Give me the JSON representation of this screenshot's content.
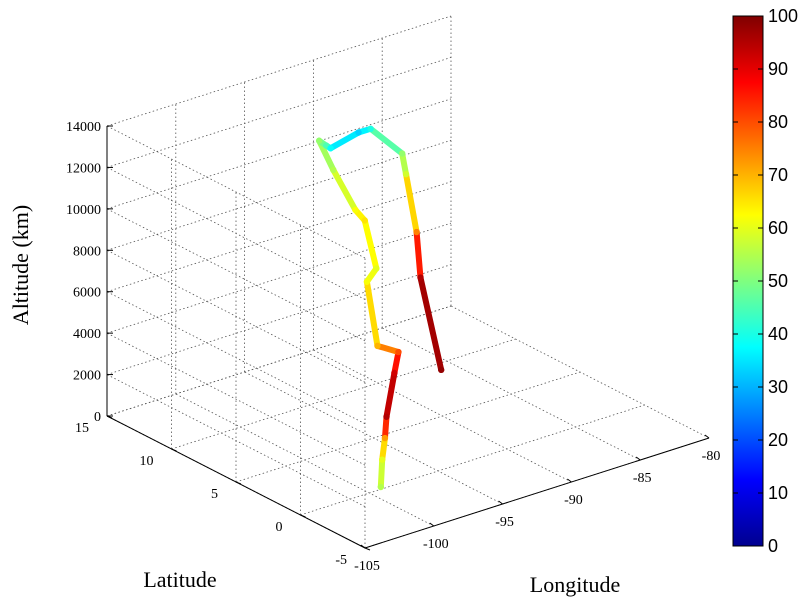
{
  "chart_data": {
    "type": "line",
    "variant": "3d-trajectory",
    "title": "",
    "xlabel": "Longitude",
    "ylabel": "Latitude",
    "zlabel": "Altitude (km)",
    "xlim": [
      -105,
      -80
    ],
    "ylim": [
      -5,
      15
    ],
    "zlim": [
      0,
      14000
    ],
    "x_ticks": [
      "-105",
      "-100",
      "-95",
      "-90",
      "-85",
      "-80"
    ],
    "y_ticks": [
      "-5",
      "0",
      "5",
      "10",
      "15"
    ],
    "z_ticks": [
      "0",
      "2000",
      "4000",
      "6000",
      "8000",
      "10000",
      "12000",
      "14000"
    ],
    "grid": true,
    "colorbar": {
      "colormap": "jet",
      "range": [
        0,
        100
      ],
      "ticks": [
        "0",
        "10",
        "20",
        "30",
        "40",
        "50",
        "60",
        "70",
        "80",
        "90",
        "100"
      ],
      "placement": "right"
    },
    "series": [
      {
        "x": [
          -98.6,
          -98.5,
          -98.3,
          -98.0,
          -97.8,
          -97.6,
          -98.0,
          -98.3,
          -97.8,
          -96.3,
          -96.7,
          -96.9,
          -96.8,
          -96.0,
          -95.5,
          -94.5,
          -94.0,
          -93.3,
          -93.3,
          -93.0,
          -93.0,
          -92.9
        ],
        "y": [
          0.6,
          0.6,
          0.6,
          0.8,
          0.4,
          0.3,
          1.5,
          2.0,
          1.8,
          4.3,
          4.6,
          6.1,
          7.3,
          7.6,
          7.8,
          6.7,
          6.3,
          4.6,
          4.3,
          3.8,
          3.5,
          2.0
        ],
        "z": [
          -200,
          1100,
          2100,
          3000,
          5200,
          6200,
          6200,
          9200,
          9800,
          11000,
          11500,
          13000,
          14000,
          13500,
          13200,
          14100,
          14300,
          13500,
          12600,
          9900,
          7800,
          3800
        ],
        "c": [
          55,
          60,
          72,
          95,
          92,
          80,
          70,
          62,
          60,
          65,
          62,
          55,
          52,
          45,
          38,
          33,
          40,
          52,
          58,
          75,
          95,
          98
        ]
      }
    ]
  }
}
